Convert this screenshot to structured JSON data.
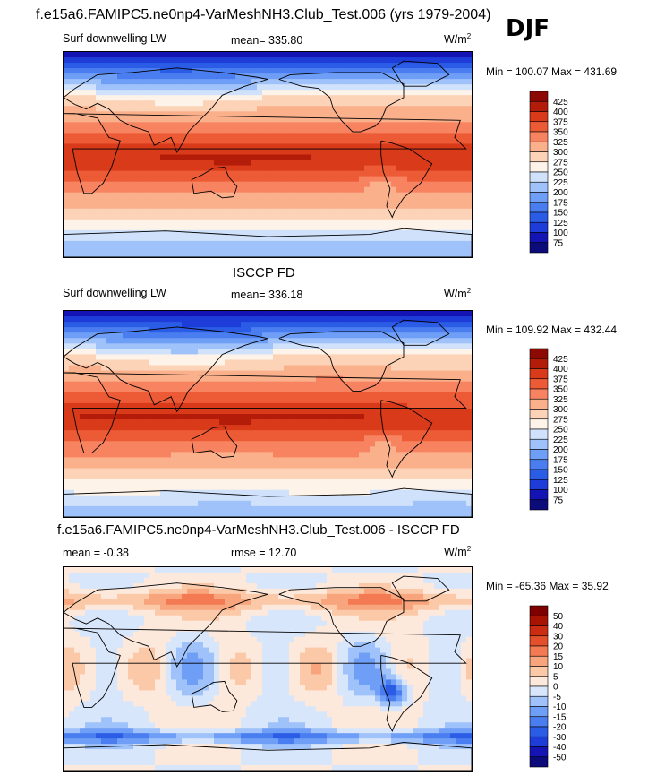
{
  "figure": {
    "title": "f.e15a6.FAMIPC5.ne0np4-VarMeshNH3.Club_Test.006 (yrs 1979-2004)",
    "season": "DJF"
  },
  "panels": [
    {
      "id": "model",
      "left_label": "Surf downwelling LW",
      "center_label": "mean= 335.80",
      "units_base": "W/m",
      "units_exp": "2",
      "minmax": "Min = 100.07 Max = 431.69"
    },
    {
      "id": "obs",
      "panel_title": "ISCCP FD",
      "left_label": "Surf downwelling LW",
      "center_label": "mean= 336.18",
      "units_base": "W/m",
      "units_exp": "2",
      "minmax": "Min = 109.92 Max = 432.44"
    },
    {
      "id": "diff",
      "panel_title": "f.e15a6.FAMIPC5.ne0np4-VarMeshNH3.Club_Test.006 - ISCCP FD",
      "left_label": "mean =  -0.38",
      "center_label": "rmse =  12.70",
      "units_base": "W/m",
      "units_exp": "2",
      "minmax": "Min = -65.36 Max =  35.92"
    }
  ],
  "chart_data": [
    {
      "type": "heatmap",
      "title": "Surf downwelling LW",
      "subtitle": "mean= 335.80",
      "units": "W/m2",
      "stat_min": 100.07,
      "stat_max": 431.69,
      "colorbar_levels": [
        75,
        100,
        125,
        150,
        175,
        200,
        225,
        250,
        275,
        300,
        325,
        350,
        375,
        400,
        425
      ],
      "colorbar_colors": [
        "#0b0b7a",
        "#1414b4",
        "#1e3cd8",
        "#2a5ce6",
        "#4a7ef0",
        "#6f9ef6",
        "#9fc2fa",
        "#cfe1fb",
        "#fdf3e8",
        "#fdd3b8",
        "#fbb08c",
        "#f78360",
        "#ec5b35",
        "#d83a1a",
        "#b41c0a",
        "#8c0a02"
      ],
      "field": "surf_downwelling_lw_model"
    },
    {
      "type": "heatmap",
      "title": "ISCCP FD",
      "subtitle": "mean= 336.18",
      "units": "W/m2",
      "stat_min": 109.92,
      "stat_max": 432.44,
      "colorbar_levels": [
        75,
        100,
        125,
        150,
        175,
        200,
        225,
        250,
        275,
        300,
        325,
        350,
        375,
        400,
        425
      ],
      "colorbar_colors": [
        "#0b0b7a",
        "#1414b4",
        "#1e3cd8",
        "#2a5ce6",
        "#4a7ef0",
        "#6f9ef6",
        "#9fc2fa",
        "#cfe1fb",
        "#fdf3e8",
        "#fdd3b8",
        "#fbb08c",
        "#f78360",
        "#ec5b35",
        "#d83a1a",
        "#b41c0a",
        "#8c0a02"
      ],
      "field": "surf_downwelling_lw_obs"
    },
    {
      "type": "heatmap",
      "title": "f.e15a6.FAMIPC5.ne0np4-VarMeshNH3.Club_Test.006 - ISCCP FD",
      "subtitle": "mean =  -0.38 ; rmse =  12.70",
      "units": "W/m2",
      "stat_min": -65.36,
      "stat_max": 35.92,
      "colorbar_levels": [
        -50,
        -40,
        -30,
        -20,
        -15,
        -10,
        -5,
        0,
        5,
        10,
        15,
        20,
        30,
        40,
        50
      ],
      "colorbar_colors": [
        "#0b0b7a",
        "#1414b4",
        "#1e3cd8",
        "#2a5ce6",
        "#4a7ef0",
        "#6f9ef6",
        "#9fc2fa",
        "#d8e6fb",
        "#fde9dc",
        "#fbc9a8",
        "#f8a47c",
        "#f37a52",
        "#e4502c",
        "#cc2c12",
        "#a81404",
        "#7e0000"
      ],
      "field": "surf_downwelling_lw_diff"
    }
  ]
}
